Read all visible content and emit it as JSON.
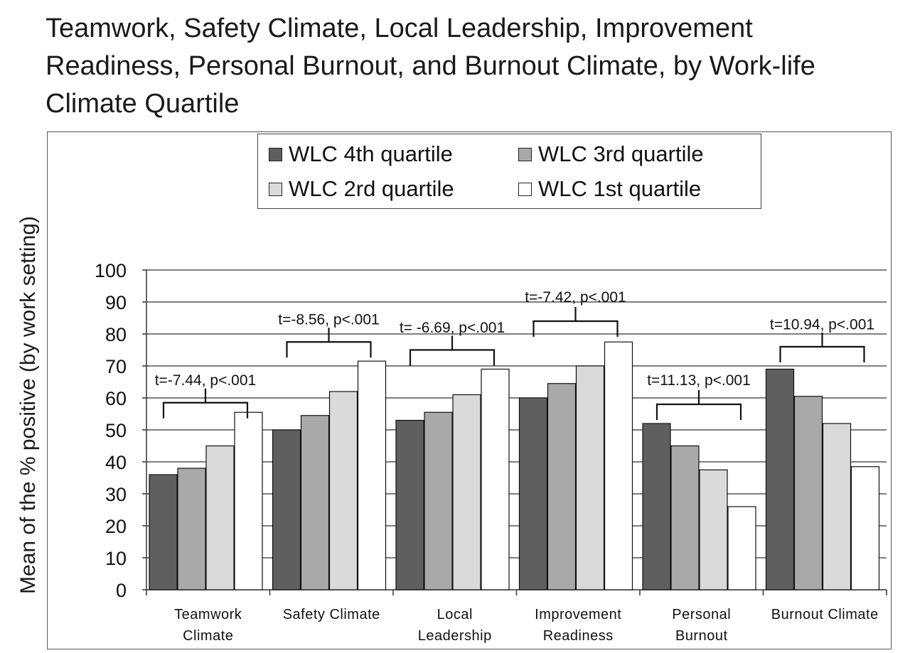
{
  "chart_data": {
    "type": "bar",
    "title_lines": [
      "Teamwork, Safety Climate, Local Leadership, Improvement",
      "Readiness, Personal Burnout, and Burnout Climate, by Work-life",
      "Climate Quartile"
    ],
    "ylabel": "Mean of the % positive (by work setting)",
    "xlabel": "",
    "ylim": [
      0,
      100
    ],
    "yticks": [
      "0",
      "10",
      "20",
      "30",
      "40",
      "50",
      "60",
      "70",
      "80",
      "90",
      "100"
    ],
    "grid": true,
    "legend_position": "top-right",
    "categories": [
      [
        "Teamwork",
        "Climate"
      ],
      [
        "Safety Climate"
      ],
      [
        "Local",
        "Leadership"
      ],
      [
        "Improvement",
        "Readiness"
      ],
      [
        "Personal",
        "Burnout"
      ],
      [
        "Burnout Climate"
      ]
    ],
    "series": [
      {
        "name": "WLC 4th quartile",
        "color": "#5f5f5f",
        "values": [
          36,
          50,
          53,
          60,
          52,
          69
        ]
      },
      {
        "name": "WLC 3rd quartile",
        "color": "#a9a9a9",
        "values": [
          38,
          54.5,
          55.5,
          64.5,
          45,
          60.5
        ]
      },
      {
        "name": "WLC 2rd quartile",
        "color": "#dadada",
        "values": [
          45,
          62,
          61,
          70,
          37.5,
          52
        ]
      },
      {
        "name": "WLC 1st quartile",
        "color": "#ffffff",
        "values": [
          55.5,
          71.5,
          69,
          77.5,
          26,
          38.5
        ]
      }
    ],
    "annotations": [
      {
        "text": "t=-7.44, p<.001",
        "bracket_value": 58.5,
        "label_value": 64
      },
      {
        "text": "t=-8.56, p<.001",
        "bracket_value": 77.5,
        "label_value": 83
      },
      {
        "text": "t= -6.69, p<.001",
        "bracket_value": 75,
        "label_value": 80.5
      },
      {
        "text": "t=-7.42, p<.001",
        "bracket_value": 84,
        "label_value": 90
      },
      {
        "text": "t=11.13, p<.001",
        "bracket_value": 58,
        "label_value": 64
      },
      {
        "text": "t=10.94, p<.001",
        "bracket_value": 76,
        "label_value": 81.5
      }
    ]
  }
}
